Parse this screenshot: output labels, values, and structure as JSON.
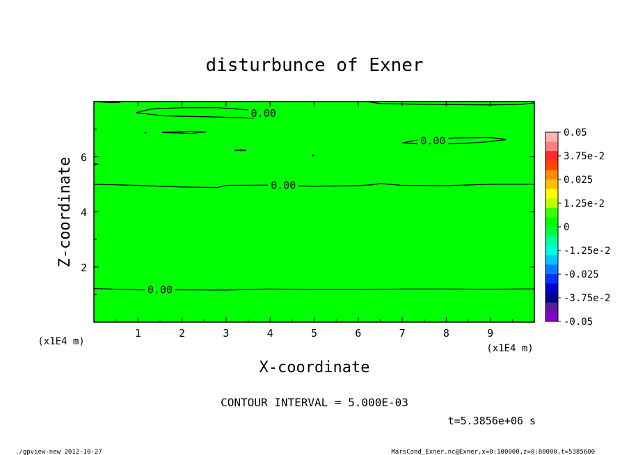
{
  "chart_data": {
    "type": "heatmap",
    "title": "disturbunce of Exner",
    "xlabel": "X-coordinate",
    "ylabel": "Z-coordinate",
    "x_unit": "(x1E4 m)",
    "y_unit": "(x1E4 m)",
    "xlim": [
      0,
      10
    ],
    "ylim": [
      0,
      8
    ],
    "x_ticks": [
      1,
      2,
      3,
      4,
      5,
      6,
      7,
      8,
      9
    ],
    "y_ticks": [
      2,
      4,
      6
    ],
    "field_color": "#00ff00",
    "contour_labels": [
      {
        "text": "0.00",
        "x": 1.5,
        "y": 1.2
      },
      {
        "text": "0.00",
        "x": 4.3,
        "y": 4.98
      },
      {
        "text": "0.00",
        "x": 7.7,
        "y": 6.6
      },
      {
        "text": "0.00",
        "x": 3.85,
        "y": 7.6
      }
    ],
    "contour_lines": [
      [
        [
          0.0,
          1.22
        ],
        [
          1.0,
          1.17
        ],
        [
          2.0,
          1.17
        ],
        [
          3.0,
          1.16
        ],
        [
          4.0,
          1.2
        ],
        [
          5.0,
          1.18
        ],
        [
          6.0,
          1.18
        ],
        [
          7.0,
          1.2
        ],
        [
          8.0,
          1.2
        ],
        [
          9.0,
          1.19
        ],
        [
          10.0,
          1.21
        ]
      ],
      [
        [
          0.0,
          5.0
        ],
        [
          1.0,
          4.96
        ],
        [
          2.0,
          4.9
        ],
        [
          2.8,
          4.88
        ],
        [
          3.0,
          4.96
        ],
        [
          4.0,
          4.97
        ],
        [
          5.0,
          4.93
        ],
        [
          6.0,
          4.95
        ],
        [
          6.3,
          4.98
        ],
        [
          6.5,
          5.03
        ],
        [
          7.0,
          4.96
        ],
        [
          8.0,
          4.95
        ],
        [
          9.0,
          5.0
        ],
        [
          10.0,
          5.0
        ]
      ],
      [
        [
          0.0,
          8.05
        ],
        [
          0.35,
          7.97
        ],
        [
          0.6,
          7.97
        ]
      ],
      [
        [
          6.2,
          8.05
        ],
        [
          6.5,
          7.93
        ],
        [
          7.5,
          7.9
        ],
        [
          9.0,
          7.88
        ],
        [
          9.7,
          7.9
        ],
        [
          10.0,
          7.95
        ]
      ]
    ],
    "contour_loops": [
      [
        [
          0.95,
          7.6
        ],
        [
          1.3,
          7.73
        ],
        [
          2.0,
          7.78
        ],
        [
          2.8,
          7.78
        ],
        [
          3.5,
          7.7
        ],
        [
          4.1,
          7.62
        ],
        [
          4.15,
          7.5
        ],
        [
          3.6,
          7.4
        ],
        [
          2.6,
          7.45
        ],
        [
          1.6,
          7.48
        ],
        [
          0.95,
          7.6
        ]
      ],
      [
        [
          7.0,
          6.5
        ],
        [
          7.4,
          6.62
        ],
        [
          8.2,
          6.68
        ],
        [
          9.0,
          6.7
        ],
        [
          9.35,
          6.62
        ],
        [
          9.0,
          6.55
        ],
        [
          8.4,
          6.48
        ],
        [
          7.5,
          6.45
        ],
        [
          7.0,
          6.5
        ]
      ],
      [
        [
          1.55,
          6.88
        ],
        [
          2.2,
          6.91
        ],
        [
          2.55,
          6.9
        ],
        [
          2.2,
          6.85
        ],
        [
          1.55,
          6.88
        ]
      ]
    ],
    "contour_marks": [
      [
        [
          1.15,
          6.87
        ],
        [
          1.19,
          6.87
        ]
      ],
      [
        [
          3.2,
          6.23
        ],
        [
          3.45,
          6.23
        ]
      ],
      [
        [
          4.95,
          6.05
        ],
        [
          5.0,
          6.04
        ]
      ],
      [
        [
          0.0,
          5.72
        ],
        [
          0.1,
          5.73
        ]
      ]
    ],
    "colorbar": {
      "min": -0.05,
      "max": 0.05,
      "labels": [
        "0.05",
        "3.75e-2",
        "0.025",
        "1.25e-2",
        "0",
        "-1.25e-2",
        "-0.025",
        "-3.75e-2",
        "-0.05"
      ],
      "colors": [
        "#ffb3b3",
        "#ff7f7f",
        "#ff2a2a",
        "#ff4500",
        "#ff8c00",
        "#ffc000",
        "#ffff00",
        "#bfff00",
        "#3cff00",
        "#00ff00",
        "#00ff40",
        "#00ff9f",
        "#00ffe0",
        "#00c8ff",
        "#007fff",
        "#0033ff",
        "#0000cc",
        "#00008b",
        "#5a1a9a",
        "#8b00c8"
      ]
    },
    "contour_interval_text": "CONTOUR INTERVAL = 5.000E-03",
    "time_text": "t=5.3856e+06 s"
  },
  "footer": {
    "left": "./gpview-new  2012-10-27",
    "right": "MarsCond_Exner.nc@Exner,x=0:100000,z=0:80000,t=5385600"
  }
}
